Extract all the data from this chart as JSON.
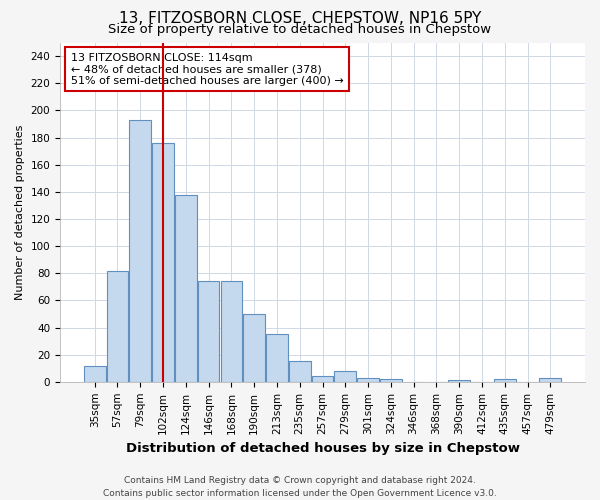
{
  "title": "13, FITZOSBORN CLOSE, CHEPSTOW, NP16 5PY",
  "subtitle": "Size of property relative to detached houses in Chepstow",
  "xlabel": "Distribution of detached houses by size in Chepstow",
  "ylabel": "Number of detached properties",
  "categories": [
    "35sqm",
    "57sqm",
    "79sqm",
    "102sqm",
    "124sqm",
    "146sqm",
    "168sqm",
    "190sqm",
    "213sqm",
    "235sqm",
    "257sqm",
    "279sqm",
    "301sqm",
    "324sqm",
    "346sqm",
    "368sqm",
    "390sqm",
    "412sqm",
    "435sqm",
    "457sqm",
    "479sqm"
  ],
  "values": [
    12,
    82,
    193,
    176,
    138,
    74,
    74,
    50,
    35,
    15,
    4,
    8,
    3,
    2,
    0,
    0,
    1,
    0,
    2,
    0,
    3
  ],
  "bar_color": "#c5d9ee",
  "bar_edge_color": "#6090c0",
  "vline_x": 3.0,
  "vline_color": "#cc0000",
  "annotation_text": "13 FITZOSBORN CLOSE: 114sqm\n← 48% of detached houses are smaller (378)\n51% of semi-detached houses are larger (400) →",
  "annotation_box_color": "#ffffff",
  "annotation_box_edge_color": "#cc0000",
  "ylim": [
    0,
    250
  ],
  "yticks": [
    0,
    20,
    40,
    60,
    80,
    100,
    120,
    140,
    160,
    180,
    200,
    220,
    240
  ],
  "footer_line1": "Contains HM Land Registry data © Crown copyright and database right 2024.",
  "footer_line2": "Contains public sector information licensed under the Open Government Licence v3.0.",
  "title_fontsize": 11,
  "subtitle_fontsize": 9.5,
  "xlabel_fontsize": 9.5,
  "ylabel_fontsize": 8,
  "tick_fontsize": 7.5,
  "annotation_fontsize": 8,
  "footer_fontsize": 6.5,
  "background_color": "#f5f5f5",
  "plot_bg_color": "#ffffff",
  "grid_color": "#d0d8e4"
}
